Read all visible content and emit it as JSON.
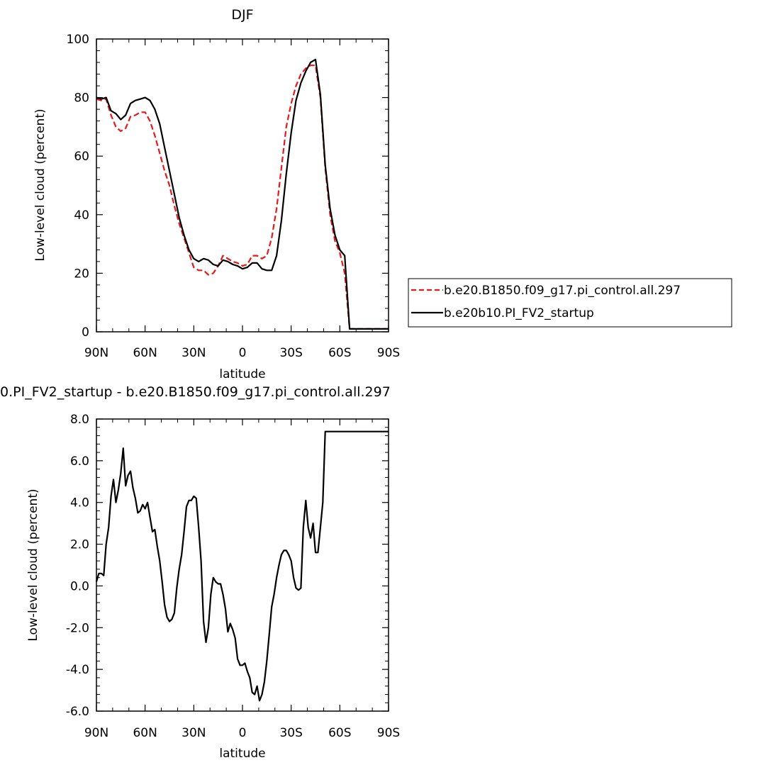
{
  "chart_data": [
    {
      "type": "line",
      "title": "DJF",
      "xlabel": "latitude",
      "ylabel": "Low-level cloud (percent)",
      "xlim": [
        90,
        -90
      ],
      "ylim": [
        0,
        100
      ],
      "xticks": [
        90,
        60,
        30,
        0,
        -30,
        -60,
        -90
      ],
      "xtick_labels": [
        "90N",
        "60N",
        "30N",
        "0",
        "30S",
        "60S",
        "90S"
      ],
      "yticks": [
        0,
        20,
        40,
        60,
        80,
        100
      ],
      "ytick_labels": [
        "0",
        "20",
        "40",
        "60",
        "80",
        "100"
      ],
      "legend_position": "right",
      "series": [
        {
          "name": "b.e20.B1850.f09_g17.pi_control.all.297",
          "color": "#e41a1c",
          "dash": "dashed",
          "x": [
            90,
            87,
            84,
            81,
            78,
            75,
            72,
            69,
            66,
            63,
            60,
            57,
            54,
            51,
            48,
            45,
            42,
            39,
            36,
            33,
            30,
            27,
            24,
            21,
            18,
            15,
            12,
            9,
            6,
            3,
            0,
            -3,
            -6,
            -9,
            -12,
            -15,
            -18,
            -21,
            -24,
            -27,
            -30,
            -33,
            -36,
            -39,
            -42,
            -45,
            -48,
            -51,
            -54,
            -57,
            -60,
            -63,
            -66,
            -69,
            -72,
            -75,
            -78,
            -81,
            -84,
            -87,
            -90
          ],
          "y": [
            79.5,
            79.0,
            79.5,
            74.0,
            70.0,
            68.5,
            69.5,
            73.5,
            74.0,
            75.0,
            75.0,
            72.0,
            67.0,
            61.0,
            55.0,
            50.0,
            43.0,
            37.0,
            32.0,
            27.0,
            22.0,
            21.0,
            21.0,
            19.5,
            20.0,
            22.5,
            26.0,
            25.0,
            24.0,
            23.5,
            22.5,
            23.0,
            26.0,
            26.0,
            25.0,
            26.0,
            32.0,
            42.0,
            56.0,
            70.0,
            78.0,
            84.0,
            88.0,
            90.0,
            91.0,
            91.0,
            80.0,
            56.0,
            40.0,
            31.0,
            27.0,
            20.0,
            1.0,
            1.0,
            1.0,
            1.0,
            1.0,
            1.0,
            1.0,
            1.0,
            1.0
          ]
        },
        {
          "name": "b.e20b10.PI_FV2_startup",
          "color": "#000000",
          "dash": "solid",
          "x": [
            90,
            87,
            84,
            81,
            78,
            75,
            72,
            69,
            66,
            63,
            60,
            57,
            54,
            51,
            48,
            45,
            42,
            39,
            36,
            33,
            30,
            27,
            24,
            21,
            18,
            15,
            12,
            9,
            6,
            3,
            0,
            -3,
            -6,
            -9,
            -12,
            -15,
            -18,
            -21,
            -24,
            -27,
            -30,
            -33,
            -36,
            -39,
            -42,
            -45,
            -48,
            -51,
            -54,
            -57,
            -60,
            -63,
            -66,
            -69,
            -72,
            -75,
            -78,
            -81,
            -84,
            -87,
            -90
          ],
          "y": [
            80.0,
            79.5,
            80.0,
            75.5,
            74.5,
            72.5,
            74.0,
            78.0,
            79.0,
            79.5,
            80.0,
            79.0,
            76.0,
            71.0,
            63.0,
            55.0,
            47.0,
            39.0,
            33.0,
            28.0,
            25.0,
            24.0,
            25.0,
            24.5,
            23.0,
            22.5,
            24.5,
            24.0,
            23.0,
            22.5,
            21.5,
            22.0,
            23.5,
            23.5,
            21.5,
            21.0,
            21.0,
            26.0,
            38.0,
            54.0,
            68.0,
            79.0,
            85.0,
            89.0,
            92.0,
            93.0,
            81.0,
            57.0,
            42.0,
            33.0,
            28.0,
            26.0,
            1.0,
            1.0,
            1.0,
            1.0,
            1.0,
            1.0,
            1.0,
            1.0,
            1.0
          ]
        }
      ]
    },
    {
      "type": "line",
      "title": "0.PI_FV2_startup - b.e20.B1850.f09_g17.pi_control.all.297",
      "xlabel": "latitude",
      "ylabel": "Low-level cloud (percent)",
      "xlim": [
        90,
        -90
      ],
      "ylim": [
        -6,
        8
      ],
      "xticks": [
        90,
        60,
        30,
        0,
        -30,
        -60,
        -90
      ],
      "xtick_labels": [
        "90N",
        "60N",
        "30N",
        "0",
        "30S",
        "60S",
        "90S"
      ],
      "yticks": [
        -6,
        -4,
        -2,
        0,
        2,
        4,
        6,
        8
      ],
      "ytick_labels": [
        "-6.0",
        "-4.0",
        "-2.0",
        "0.0",
        "2.0",
        "4.0",
        "6.0",
        "8.0"
      ],
      "series": [
        {
          "color": "#000000",
          "dash": "solid",
          "x": [
            90,
            88.5,
            87,
            85.5,
            84,
            82.5,
            81,
            79.5,
            78,
            76.5,
            75,
            73.5,
            72,
            70.5,
            69,
            67.5,
            66,
            64.5,
            63,
            61.5,
            60,
            58.5,
            57,
            55.5,
            54,
            52.5,
            51,
            49.5,
            48,
            46.5,
            45,
            43.5,
            42,
            40.5,
            39,
            37.5,
            36,
            34.5,
            33,
            31.5,
            30,
            28.5,
            27,
            25.5,
            24,
            22.5,
            21,
            19.5,
            18,
            16.5,
            15,
            13.5,
            12,
            10.5,
            9,
            7.5,
            6,
            4.5,
            3,
            1.5,
            0,
            -1.5,
            -3,
            -4.5,
            -6,
            -7.5,
            -9,
            -10.5,
            -12,
            -13.5,
            -15,
            -16.5,
            -18,
            -19.5,
            -21,
            -22.5,
            -24,
            -25.5,
            -27,
            -28.5,
            -30,
            -31.5,
            -33,
            -34.5,
            -36,
            -37.5,
            -39,
            -40.5,
            -42,
            -43.5,
            -45,
            -46.5,
            -48,
            -49.5,
            -51,
            -52.5,
            -54,
            -55.5,
            -57,
            -58.5,
            -60,
            -61.5,
            -63,
            -64.5,
            -66,
            -67.5,
            -69,
            -70.5,
            -72,
            -73.5,
            -75,
            -76.5,
            -78,
            -79.5,
            -81,
            -82.5,
            -84,
            -85.5,
            -87,
            -88.5,
            -90
          ],
          "y": [
            0.2,
            0.6,
            0.6,
            0.5,
            2.0,
            2.8,
            4.3,
            5.1,
            4.0,
            4.6,
            5.4,
            6.6,
            4.8,
            5.3,
            5.5,
            4.7,
            4.2,
            3.5,
            3.6,
            3.9,
            3.7,
            4.0,
            3.3,
            2.6,
            2.7,
            1.9,
            1.2,
            0.2,
            -0.9,
            -1.5,
            -1.7,
            -1.6,
            -1.3,
            -0.1,
            0.8,
            1.5,
            2.6,
            3.8,
            4.1,
            4.1,
            4.3,
            4.2,
            2.8,
            1.2,
            -1.7,
            -2.7,
            -2.0,
            -0.4,
            0.4,
            0.2,
            0.1,
            0.1,
            -0.4,
            -1.1,
            -2.2,
            -1.8,
            -2.1,
            -2.5,
            -3.5,
            -3.8,
            -3.8,
            -3.7,
            -4.1,
            -4.4,
            -5.1,
            -5.2,
            -4.8,
            -5.5,
            -5.2,
            -4.6,
            -3.6,
            -2.3,
            -1.0,
            -0.4,
            0.4,
            1.0,
            1.5,
            1.7,
            1.7,
            1.5,
            1.2,
            0.4,
            -0.1,
            -0.2,
            -0.1,
            2.8,
            4.1,
            2.8,
            2.3,
            3.0,
            1.6,
            1.6,
            2.8,
            4.0,
            7.4,
            7.4,
            7.4,
            7.4,
            7.4,
            7.4,
            7.4,
            7.4,
            7.4,
            7.4,
            7.4,
            7.4,
            7.4,
            7.4,
            7.4,
            7.4,
            7.4,
            7.4,
            7.4,
            7.4,
            7.4,
            7.4,
            7.4,
            7.4,
            7.4,
            7.4,
            7.4
          ]
        }
      ]
    }
  ]
}
